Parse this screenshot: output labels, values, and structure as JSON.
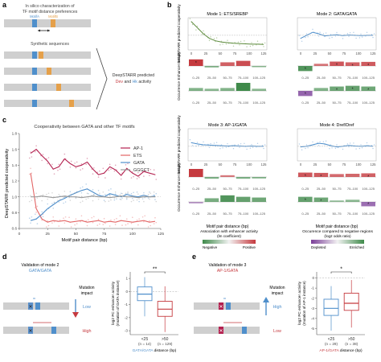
{
  "colors": {
    "blue": "#4f8fcb",
    "orange": "#e5a04a",
    "red": "#c53a3f",
    "green": "#3f8a4a",
    "purple": "#7b3f98",
    "crimson": "#b3204f",
    "gray": "#8a8a8a",
    "seq": "#cfcfcf",
    "link": "#3a5fae"
  },
  "panel_a": {
    "letter": "a",
    "insilico_line1": "In silico characterization of",
    "insilico_line2": "TF motif distance preferences",
    "motif_a": "MotifA",
    "motif_b": "MotifB",
    "synthetic_label": "Synthetic sequences",
    "deepstarr_line1": "DeepSTARR predicted",
    "deepstarr_dev": "Dev",
    "deepstarr_and": "and",
    "deepstarr_hk": "Hk",
    "deepstarr_activity": "activity"
  },
  "panel_b": {
    "letter": "b",
    "y_label_top": "DeepSTARR predicted cooperativity",
    "y_label_mid": "Enhancer activity",
    "y_label_bottom": "Occurrence",
    "x_ticks_top": [
      "0",
      "25",
      "50",
      "75",
      "100",
      "125"
    ],
    "bins": [
      "0–25",
      "25–50",
      "50–75",
      "75–100",
      "100–125"
    ],
    "x_axis_label": "Motif pair distance (bp)",
    "legend_assoc_title": "Association with enhancer activity",
    "legend_assoc_sub": "(lm coefficient)",
    "legend_negative": "Negative",
    "legend_positive": "Positive",
    "legend_occ_title": "Occurence compared to negative regions",
    "legend_occ_sub": "(log2 odds ratio)",
    "legend_depleted": "Depleted",
    "legend_enriched": "Enriched",
    "modes": [
      {
        "title": "Mode 1: ETS/SREBP",
        "line_color": "#5b8a3a",
        "curve": [
          1.45,
          1.25,
          1.05,
          0.9,
          0.82,
          0.78,
          0.76,
          0.74,
          0.73,
          0.72,
          0.71,
          0.71,
          0.7
        ],
        "enhancer": [
          0.45,
          -0.1,
          0.25,
          0.35,
          -0.05
        ],
        "enhancer_sig": [
          true,
          false,
          false,
          false,
          false
        ],
        "occurrence": [
          0.2,
          0.15,
          0.2,
          0.55,
          0.15
        ],
        "occurrence_sig": [
          false,
          false,
          false,
          false,
          false
        ]
      },
      {
        "title": "Mode 2: GATA/GATA",
        "line_color": "#4f8fcb",
        "curve": [
          0.9,
          1.0,
          1.1,
          1.05,
          0.98,
          1.0,
          1.02,
          0.99,
          1.01,
          1.0,
          0.99,
          1.0,
          1.0
        ],
        "enhancer": [
          -0.35,
          0.15,
          0.3,
          0.25,
          0.28
        ],
        "enhancer_sig": [
          true,
          false,
          true,
          true,
          true
        ],
        "occurrence": [
          -0.35,
          0.2,
          0.3,
          0.35,
          0.3
        ],
        "occurrence_sig": [
          true,
          false,
          true,
          true,
          true
        ]
      },
      {
        "title": "Mode 3: AP-1/GATA",
        "line_color": "#4f8fcb",
        "curve": [
          1.12,
          1.08,
          1.05,
          1.04,
          1.03,
          1.02,
          1.01,
          1.02,
          1.01,
          1.0,
          1.01,
          1.0,
          1.0
        ],
        "enhancer": [
          0.55,
          -0.12,
          0.12,
          -0.12,
          -0.1
        ],
        "enhancer_sig": [
          false,
          false,
          false,
          false,
          false
        ],
        "occurrence": [
          -0.1,
          0.25,
          0.45,
          0.35,
          0.3
        ],
        "occurrence_sig": [
          false,
          false,
          false,
          false,
          false
        ]
      },
      {
        "title": "Mode 4: Dref/Dref",
        "line_color": "#4f8fcb",
        "curve": [
          0.98,
          1.0,
          1.05,
          1.1,
          1.08,
          1.02,
          0.98,
          1.0,
          1.03,
          1.01,
          1.0,
          1.02,
          1.0
        ],
        "enhancer": [
          0.3,
          0.28,
          0.2,
          0.22,
          0.25
        ],
        "enhancer_sig": [
          true,
          true,
          false,
          false,
          true
        ],
        "occurrence": [
          0.35,
          0.3,
          0.1,
          0.15,
          -0.3
        ],
        "occurrence_sig": [
          true,
          true,
          false,
          false,
          true
        ]
      }
    ]
  },
  "panel_c": {
    "letter": "c",
    "title": "Cooperativity between GATA and other TF motifs",
    "y_label": "DeepSTARR predicted cooperativity",
    "x_label": "Motif pair distance (bp)",
    "x_ticks": [
      "0",
      "25",
      "50",
      "75",
      "100",
      "125"
    ],
    "y_ticks": [
      "0.6",
      "0.8",
      "1.0",
      "1.2",
      "1.4",
      "1.6",
      "1.8"
    ],
    "ylim": [
      0.6,
      1.8
    ],
    "xlim": [
      0,
      125
    ],
    "series": [
      {
        "name": "AP-1",
        "color": "#b3204f",
        "x": [
          10,
          15,
          20,
          25,
          30,
          35,
          40,
          45,
          50,
          55,
          60,
          65,
          70,
          75,
          80,
          85,
          90,
          95,
          100,
          105,
          110,
          115,
          120
        ],
        "y": [
          1.55,
          1.6,
          1.52,
          1.45,
          1.35,
          1.38,
          1.48,
          1.42,
          1.38,
          1.4,
          1.44,
          1.35,
          1.28,
          1.3,
          1.38,
          1.34,
          1.27,
          1.36,
          1.3,
          1.26,
          1.32,
          1.3,
          1.28
        ]
      },
      {
        "name": "ETS",
        "color": "#e36565",
        "x": [
          10,
          15,
          20,
          25,
          30,
          35,
          40,
          45,
          50,
          55,
          60,
          65,
          70,
          75,
          80,
          85,
          90,
          95,
          100,
          105,
          110,
          115,
          120
        ],
        "y": [
          1.3,
          0.85,
          0.72,
          0.68,
          0.7,
          0.69,
          0.7,
          0.68,
          0.69,
          0.7,
          0.68,
          0.69,
          0.7,
          0.68,
          0.69,
          0.68,
          0.7,
          0.69,
          0.68,
          0.69,
          0.7,
          0.68,
          0.69
        ]
      },
      {
        "name": "GATA",
        "color": "#4f8fcb",
        "x": [
          10,
          15,
          20,
          25,
          30,
          35,
          40,
          45,
          50,
          55,
          60,
          65,
          70,
          75,
          80,
          85,
          90,
          95,
          100,
          105,
          110,
          115,
          120
        ],
        "y": [
          0.7,
          0.72,
          0.78,
          0.85,
          0.9,
          0.95,
          0.98,
          1.02,
          1.05,
          1.08,
          1.1,
          1.06,
          1.02,
          1.0,
          1.04,
          1.02,
          1.0,
          1.03,
          1.01,
          1.0,
          1.02,
          1.0,
          1.01
        ]
      },
      {
        "name": "GGGCT",
        "color": "#9a9a9a",
        "x": [
          10,
          15,
          20,
          25,
          30,
          35,
          40,
          45,
          50,
          55,
          60,
          65,
          70,
          75,
          80,
          85,
          90,
          95,
          100,
          105,
          110,
          115,
          120
        ],
        "y": [
          1.0,
          1.0,
          1.01,
          1.0,
          0.99,
          1.0,
          1.01,
          1.0,
          1.0,
          0.99,
          1.0,
          1.01,
          1.0,
          1.0,
          0.99,
          1.0,
          1.01,
          1.0,
          1.0,
          0.99,
          1.0,
          1.0,
          1.0
        ]
      }
    ]
  },
  "panel_d": {
    "letter": "d",
    "title_line1": "Validation of mode 2",
    "title_line2": "GATA/GATA",
    "mutation_label1": "Mutation",
    "mutation_label2": "impact",
    "low": "Low",
    "high": "High",
    "y_label_line1": "log2 FC enhancer activity",
    "y_label_line2": "(mutation of GATA instance)",
    "sig": "**",
    "y_ticks": [
      "1",
      "0",
      "-1",
      "-2",
      "-3"
    ],
    "groups": [
      {
        "label": "<25",
        "n": "(n = 14)",
        "color": "#4f8fcb",
        "q1": -0.7,
        "med": -0.2,
        "q3": 0.35,
        "lo": -1.9,
        "hi": 1.1
      },
      {
        "label": ">50",
        "n": "(n = 129)",
        "color": "#c53a3f",
        "q1": -1.9,
        "med": -1.35,
        "q3": -0.75,
        "lo": -3.1,
        "hi": 0.4
      }
    ],
    "x_axis_label_a": "GATA/GATA",
    "x_axis_label_b": "distance (bp)"
  },
  "panel_e": {
    "letter": "e",
    "title_line1": "Validation of mode 3",
    "title_line2": "AP-1/GATA",
    "mutation_label1": "Mutation",
    "mutation_label2": "impact",
    "low": "Low",
    "high": "High",
    "y_label_line1": "log2 FC enhancer activity",
    "y_label_line2": "(mutation of AP-1 instance)",
    "sig": "*",
    "y_ticks": [
      "0",
      "-1",
      "-2",
      "-3",
      "-4",
      "-5"
    ],
    "groups": [
      {
        "label": "<25",
        "n": "(n = 29)",
        "color": "#4f8fcb",
        "q1": -3.7,
        "med": -3.0,
        "q3": -2.1,
        "lo": -5.2,
        "hi": -0.8
      },
      {
        "label": ">50",
        "n": "(n = 38)",
        "color": "#c53a3f",
        "q1": -3.2,
        "med": -2.5,
        "q3": -1.5,
        "lo": -4.9,
        "hi": -0.2
      }
    ],
    "x_axis_label_a": "AP-1/GATA",
    "x_axis_label_b": "distance (bp)"
  }
}
